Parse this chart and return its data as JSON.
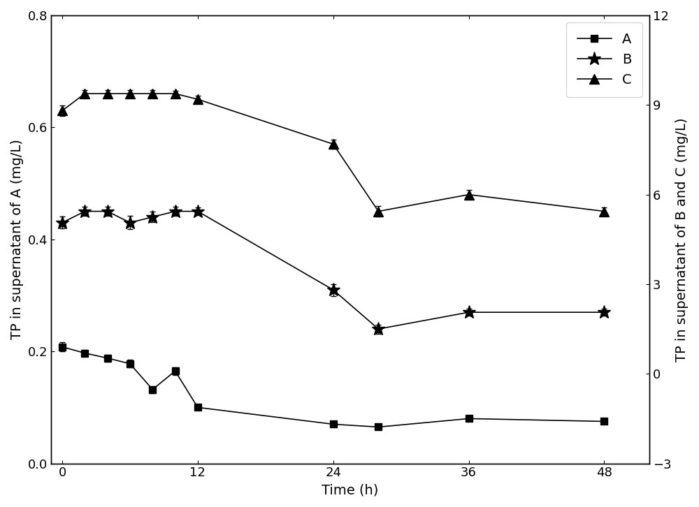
{
  "xlabel": "Time (h)",
  "ylabel_left": "TP in supernatant of A (mg/L)",
  "ylabel_right": "TP in supernatant of B and C (mg/L)",
  "xlim": [
    -1,
    52
  ],
  "ylim_left": [
    0.0,
    0.8
  ],
  "ylim_right": [
    -3,
    12
  ],
  "yticks_left": [
    0.0,
    0.2,
    0.4,
    0.6,
    0.8
  ],
  "yticks_right": [
    -3,
    0,
    3,
    6,
    9,
    12
  ],
  "xticks": [
    0,
    12,
    24,
    36,
    48
  ],
  "A_x": [
    0,
    2,
    4,
    6,
    8,
    10,
    12,
    24,
    28,
    36,
    48
  ],
  "A_y": [
    0.208,
    0.197,
    0.188,
    0.178,
    0.132,
    0.165,
    0.1,
    0.07,
    0.065,
    0.08,
    0.075
  ],
  "A_yerr": [
    0.008,
    0.006,
    0.006,
    0.007,
    0.006,
    0.007,
    0.005,
    0.004,
    0.004,
    0.005,
    0.004
  ],
  "B_x": [
    0,
    2,
    4,
    6,
    8,
    10,
    12,
    24,
    28,
    36,
    48
  ],
  "B_y": [
    5.06,
    5.44,
    5.44,
    5.06,
    5.25,
    5.44,
    5.44,
    2.81,
    1.5,
    2.06,
    2.06
  ],
  "B_yerr": [
    0.2,
    0.15,
    0.15,
    0.22,
    0.18,
    0.15,
    0.12,
    0.2,
    0.15,
    0.12,
    0.12
  ],
  "C_x": [
    0,
    2,
    4,
    6,
    8,
    10,
    12,
    24,
    28,
    36,
    48
  ],
  "C_y": [
    8.81,
    9.38,
    9.38,
    9.38,
    9.38,
    9.38,
    9.19,
    7.69,
    5.44,
    6.0,
    5.44
  ],
  "C_yerr": [
    0.18,
    0.12,
    0.12,
    0.12,
    0.12,
    0.1,
    0.12,
    0.15,
    0.18,
    0.15,
    0.12
  ],
  "line_color": "#000000",
  "marker_A": "s",
  "marker_B": "*",
  "marker_C": "^",
  "markersize_A": 7,
  "markersize_B": 14,
  "markersize_C": 10,
  "linewidth": 1.2,
  "elinewidth": 1.0,
  "capsize": 3,
  "legend_labels": [
    "A",
    "B",
    "C"
  ],
  "legend_loc": "upper right",
  "background_color": "#ffffff",
  "font_size": 14,
  "tick_font_size": 13
}
